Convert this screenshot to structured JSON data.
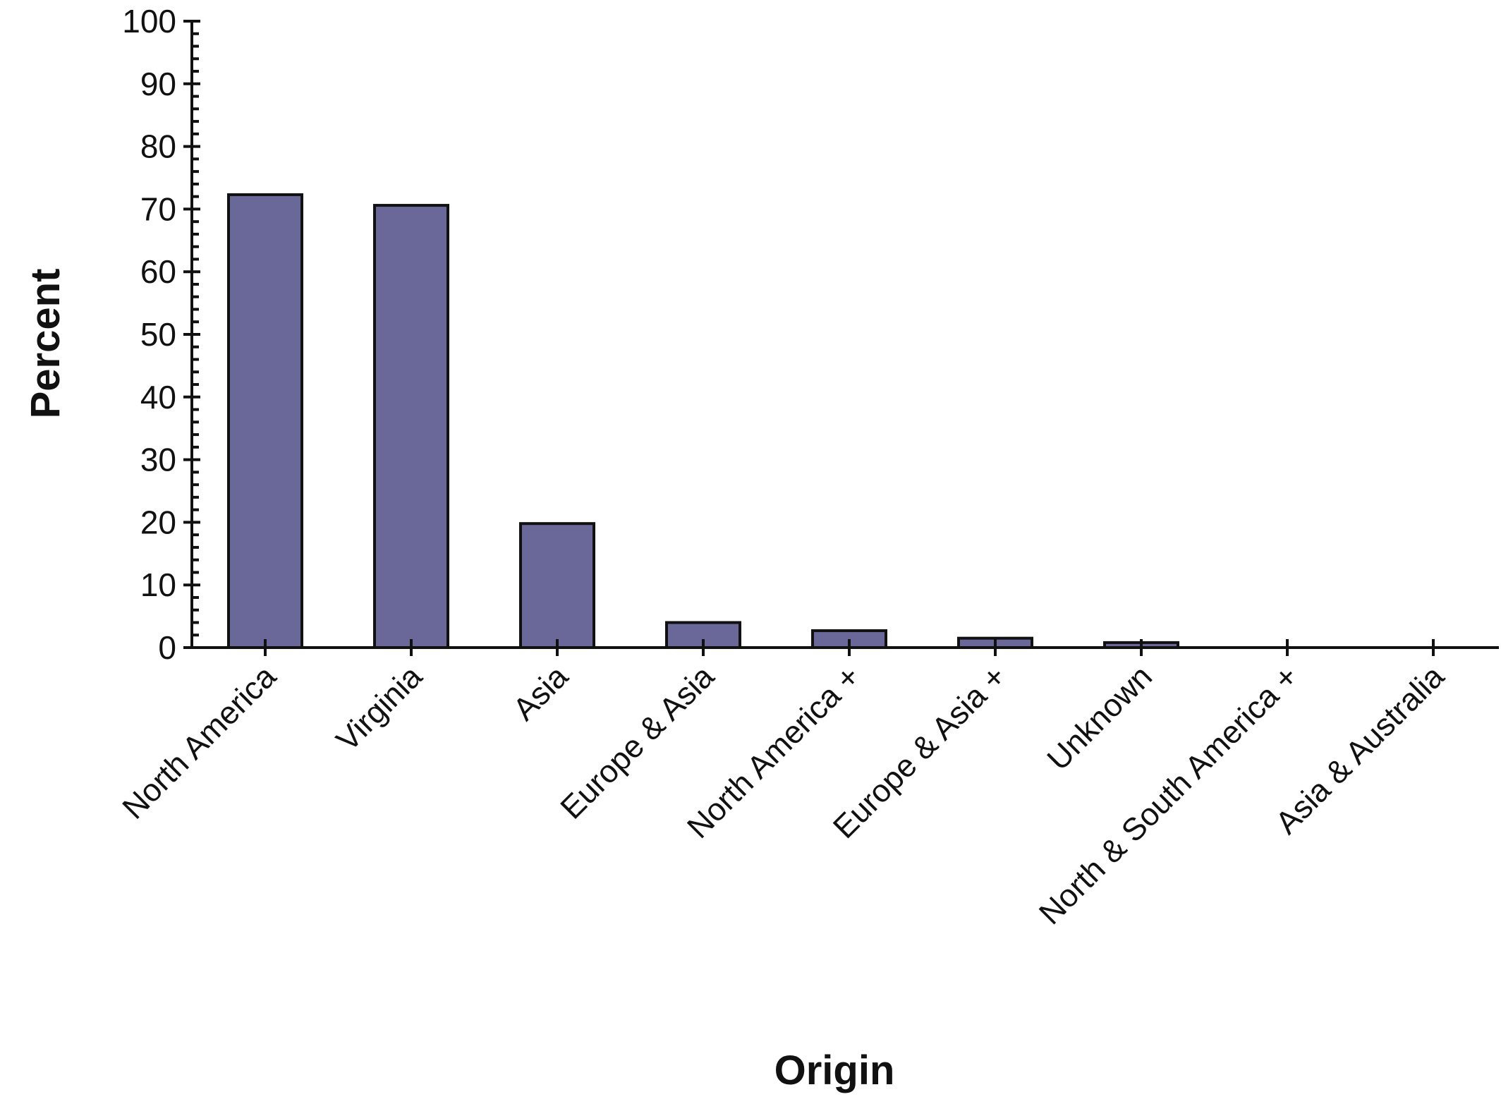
{
  "chart_data": {
    "type": "bar",
    "xlabel": "Origin",
    "ylabel": "Percent",
    "ylim": [
      0,
      100
    ],
    "yticks": [
      "0",
      "10",
      "20",
      "30",
      "40",
      "50",
      "60",
      "70",
      "80",
      "90",
      "100"
    ],
    "categories": [
      "North America",
      "Virginia",
      "Asia",
      "Europe & Asia",
      "North America +",
      "Europe & Asia +",
      "Unknown",
      "North & South America +",
      "Asia & Australia"
    ],
    "values": [
      72.3,
      70.6,
      19.8,
      4.0,
      2.7,
      1.5,
      0.8,
      0,
      0
    ],
    "grid": false,
    "legend": "none",
    "bar_color": "#6a6899"
  }
}
